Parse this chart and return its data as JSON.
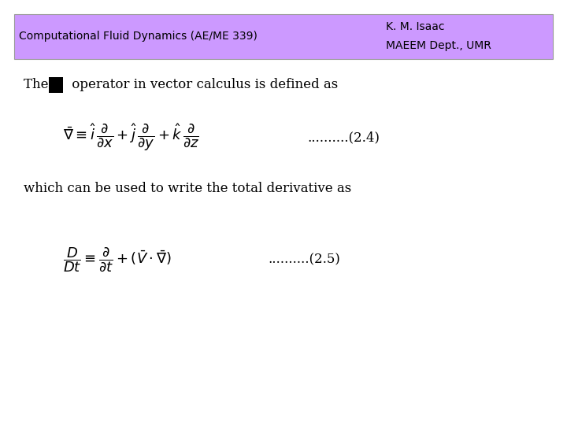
{
  "header_bg_color": "#cc99ff",
  "header_text_color": "#000000",
  "header_left": "Computational Fluid Dynamics (AE/ME 339)",
  "header_right1": "K. M. Isaac",
  "header_right2": "MAEEM Dept., UMR",
  "bg_color": "#ffffff",
  "text_color": "#000000",
  "eq1_label": "..........(2.4)",
  "eq2_label": "..........(2.5)",
  "intro_text1": "The ",
  "intro_text2": " operator in vector calculus is defined as",
  "text_below_eq1": "which can be used to write the total derivative as",
  "font_size_header": 10,
  "font_size_body": 12,
  "font_size_eq": 13
}
